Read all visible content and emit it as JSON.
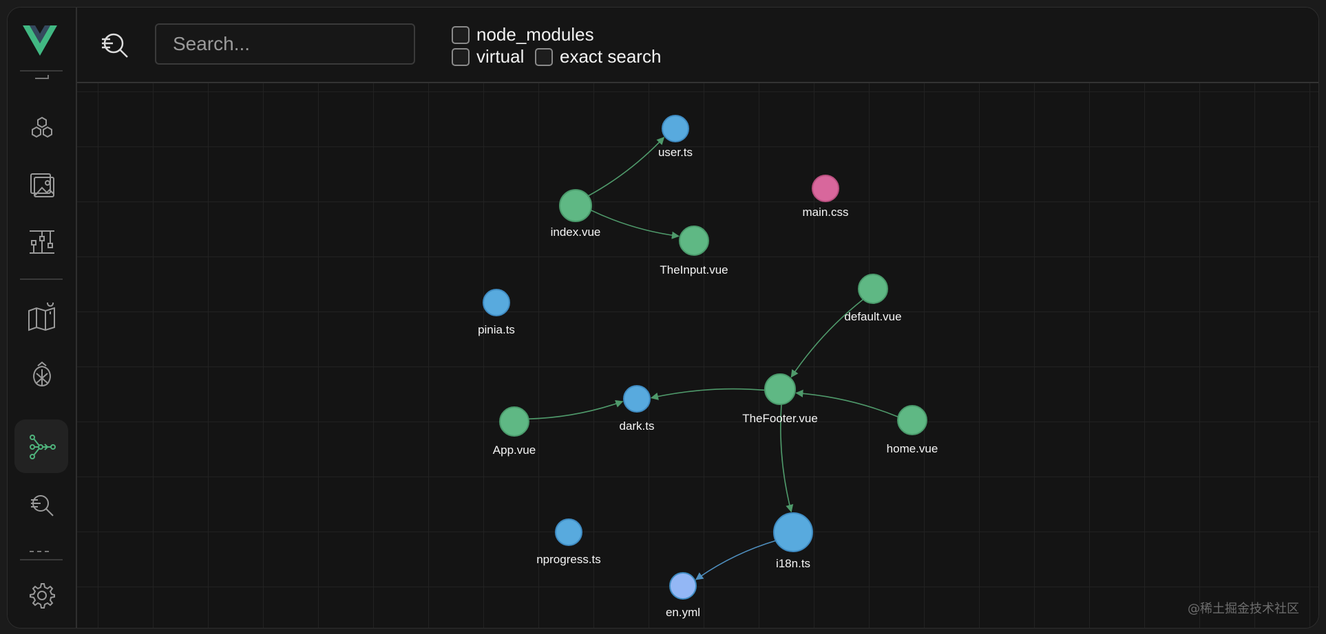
{
  "sidebar": {
    "items": [
      {
        "name": "components-icon",
        "active": false
      },
      {
        "name": "assets-icon",
        "active": false
      },
      {
        "name": "timeline-icon",
        "active": false
      },
      {
        "name": "routes-map-icon",
        "active": false
      },
      {
        "name": "pinia-icon",
        "active": false
      },
      {
        "name": "graph-icon",
        "active": true
      },
      {
        "name": "inspect-icon",
        "active": false
      },
      {
        "name": "settings-icon",
        "active": false
      }
    ]
  },
  "toolbar": {
    "search_placeholder": "Search...",
    "search_value": "",
    "filters": [
      {
        "label": "node_modules",
        "checked": false
      },
      {
        "label": "virtual",
        "checked": false
      },
      {
        "label": "exact search",
        "checked": false
      }
    ]
  },
  "graph": {
    "colors": {
      "vue": "#5fb884",
      "ts": "#58aade",
      "css": "#d8679c",
      "yml": "#93b7f5",
      "edge_green": "#4f9a6b",
      "edge_blue": "#4f8fbf"
    },
    "nodes": [
      {
        "id": "user.ts",
        "label": "user.ts",
        "kind": "ts"
      },
      {
        "id": "main.css",
        "label": "main.css",
        "kind": "css"
      },
      {
        "id": "index.vue",
        "label": "index.vue",
        "kind": "vue"
      },
      {
        "id": "TheInput.vue",
        "label": "TheInput.vue",
        "kind": "vue"
      },
      {
        "id": "default.vue",
        "label": "default.vue",
        "kind": "vue"
      },
      {
        "id": "pinia.ts",
        "label": "pinia.ts",
        "kind": "ts"
      },
      {
        "id": "TheFooter.vue",
        "label": "TheFooter.vue",
        "kind": "vue"
      },
      {
        "id": "dark.ts",
        "label": "dark.ts",
        "kind": "ts"
      },
      {
        "id": "App.vue",
        "label": "App.vue",
        "kind": "vue"
      },
      {
        "id": "home.vue",
        "label": "home.vue",
        "kind": "vue"
      },
      {
        "id": "nprogress.ts",
        "label": "nprogress.ts",
        "kind": "ts"
      },
      {
        "id": "i18n.ts",
        "label": "i18n.ts",
        "kind": "ts"
      },
      {
        "id": "en.yml",
        "label": "en.yml",
        "kind": "yml"
      }
    ],
    "edges": [
      {
        "from": "index.vue",
        "to": "user.ts"
      },
      {
        "from": "index.vue",
        "to": "TheInput.vue"
      },
      {
        "from": "default.vue",
        "to": "TheFooter.vue"
      },
      {
        "from": "TheFooter.vue",
        "to": "dark.ts"
      },
      {
        "from": "App.vue",
        "to": "dark.ts"
      },
      {
        "from": "home.vue",
        "to": "TheFooter.vue"
      },
      {
        "from": "TheFooter.vue",
        "to": "i18n.ts"
      },
      {
        "from": "i18n.ts",
        "to": "en.yml"
      }
    ]
  },
  "watermark": "@稀土掘金技术社区"
}
